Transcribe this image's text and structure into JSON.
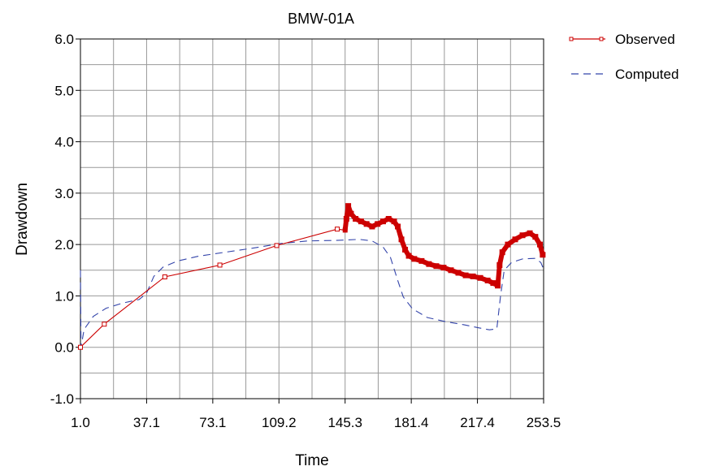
{
  "chart_data": {
    "type": "line",
    "title": "BMW-01A",
    "xlabel": "Time",
    "ylabel": "Drawdown",
    "xlim": [
      1.0,
      253.5
    ],
    "ylim": [
      -1.0,
      6.0
    ],
    "x_ticks": [
      "1.0",
      "37.1",
      "73.1",
      "109.2",
      "145.3",
      "181.4",
      "217.4",
      "253.5"
    ],
    "y_ticks": [
      "-1.0",
      "0.0",
      "1.0",
      "2.0",
      "3.0",
      "4.0",
      "5.0",
      "6.0"
    ],
    "grid": true,
    "legend_position": "top-right",
    "colors": {
      "observed": "#cc0000",
      "computed": "#3344aa"
    },
    "series": [
      {
        "name": "Observed",
        "style": "solid-with-square-markers",
        "marker_points": [
          [
            1.0,
            0.0
          ],
          [
            14.0,
            0.45
          ],
          [
            47.0,
            1.37
          ],
          [
            77.0,
            1.6
          ],
          [
            108.0,
            1.98
          ],
          [
            141.0,
            2.3
          ],
          [
            145.3,
            2.28
          ]
        ],
        "dense_points": [
          [
            146.0,
            2.5
          ],
          [
            147.0,
            2.75
          ],
          [
            148.5,
            2.6
          ],
          [
            151.0,
            2.5
          ],
          [
            154.0,
            2.45
          ],
          [
            157.0,
            2.4
          ],
          [
            160.0,
            2.35
          ],
          [
            163.0,
            2.4
          ],
          [
            166.0,
            2.45
          ],
          [
            169.0,
            2.5
          ],
          [
            172.0,
            2.45
          ],
          [
            174.0,
            2.35
          ],
          [
            176.0,
            2.1
          ],
          [
            178.0,
            1.9
          ],
          [
            180.0,
            1.78
          ],
          [
            183.0,
            1.72
          ],
          [
            187.0,
            1.68
          ],
          [
            191.0,
            1.62
          ],
          [
            195.0,
            1.58
          ],
          [
            199.0,
            1.55
          ],
          [
            203.0,
            1.5
          ],
          [
            207.0,
            1.45
          ],
          [
            211.0,
            1.4
          ],
          [
            215.0,
            1.38
          ],
          [
            219.0,
            1.35
          ],
          [
            223.0,
            1.3
          ],
          [
            226.0,
            1.25
          ],
          [
            228.5,
            1.2
          ],
          [
            229.5,
            1.6
          ],
          [
            231.0,
            1.85
          ],
          [
            234.0,
            2.0
          ],
          [
            238.0,
            2.1
          ],
          [
            242.0,
            2.18
          ],
          [
            246.0,
            2.22
          ],
          [
            249.0,
            2.15
          ],
          [
            251.5,
            2.0
          ],
          [
            253.0,
            1.8
          ]
        ]
      },
      {
        "name": "Computed",
        "style": "dashed",
        "points": [
          [
            1.0,
            1.5
          ],
          [
            1.3,
            0.0
          ],
          [
            3.0,
            0.35
          ],
          [
            8.0,
            0.6
          ],
          [
            15.0,
            0.76
          ],
          [
            24.0,
            0.86
          ],
          [
            33.0,
            0.93
          ],
          [
            37.0,
            1.05
          ],
          [
            41.0,
            1.38
          ],
          [
            46.0,
            1.56
          ],
          [
            54.0,
            1.68
          ],
          [
            65.0,
            1.77
          ],
          [
            80.0,
            1.85
          ],
          [
            95.0,
            1.93
          ],
          [
            110.0,
            2.02
          ],
          [
            125.0,
            2.07
          ],
          [
            140.0,
            2.08
          ],
          [
            153.0,
            2.1
          ],
          [
            160.0,
            2.07
          ],
          [
            166.0,
            1.95
          ],
          [
            170.0,
            1.75
          ],
          [
            174.0,
            1.3
          ],
          [
            177.0,
            0.98
          ],
          [
            182.0,
            0.75
          ],
          [
            190.0,
            0.58
          ],
          [
            200.0,
            0.5
          ],
          [
            210.0,
            0.44
          ],
          [
            218.0,
            0.38
          ],
          [
            224.0,
            0.34
          ],
          [
            228.0,
            0.36
          ],
          [
            230.0,
            1.0
          ],
          [
            232.0,
            1.5
          ],
          [
            236.0,
            1.65
          ],
          [
            242.0,
            1.72
          ],
          [
            249.0,
            1.73
          ],
          [
            252.0,
            1.65
          ],
          [
            253.5,
            1.52
          ]
        ]
      }
    ]
  }
}
